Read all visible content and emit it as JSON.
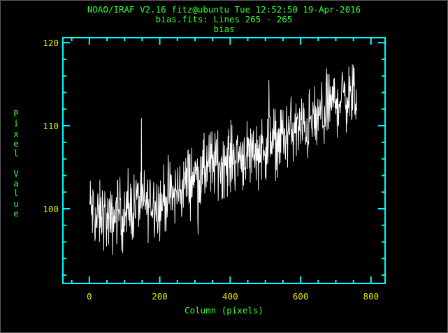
{
  "window": {
    "title_line1": "NOAO/IRAF V2.16 fitz@ubuntu Tue 12:52:50 19-Apr-2016",
    "title_line2": "bias.fits: Lines 265 - 265",
    "title_line3": "bias"
  },
  "chart_data": {
    "type": "line",
    "title": "bias",
    "xlabel": "Column (pixels)",
    "ylabel": "Pixel Value",
    "xlim": [
      -75,
      840
    ],
    "ylim": [
      91,
      120.6
    ],
    "x_ticks": [
      0,
      200,
      400,
      600,
      800
    ],
    "y_ticks": [
      100,
      110,
      120
    ],
    "grid": false,
    "colors": {
      "axes": "#00ffff",
      "tick_labels": "#e6e600",
      "titles": "#33ff33",
      "line": "#ffffff",
      "background": "#000000"
    },
    "series": [
      {
        "x": [
          1,
          20,
          40,
          60,
          80,
          100,
          120,
          140,
          160,
          180,
          200,
          220,
          240,
          260,
          280,
          300,
          320,
          340,
          360,
          380,
          400,
          420,
          440,
          460,
          480,
          500,
          520,
          540,
          560,
          580,
          600,
          620,
          640,
          660,
          680,
          700,
          720,
          740,
          760
        ],
        "y": [
          100.5,
          98.5,
          99.5,
          98.0,
          100.0,
          99.0,
          100.0,
          101.0,
          100.5,
          101.0,
          100.5,
          101.5,
          101.5,
          102.5,
          103.5,
          104.0,
          104.0,
          105.5,
          105.5,
          105.5,
          106.0,
          106.5,
          106.5,
          107.0,
          107.0,
          107.5,
          108.0,
          108.5,
          109.0,
          109.5,
          109.5,
          110.0,
          110.5,
          111.0,
          112.5,
          113.0,
          113.5,
          113.5,
          113.0
        ],
        "noise_amplitude": 2.5
      }
    ]
  }
}
